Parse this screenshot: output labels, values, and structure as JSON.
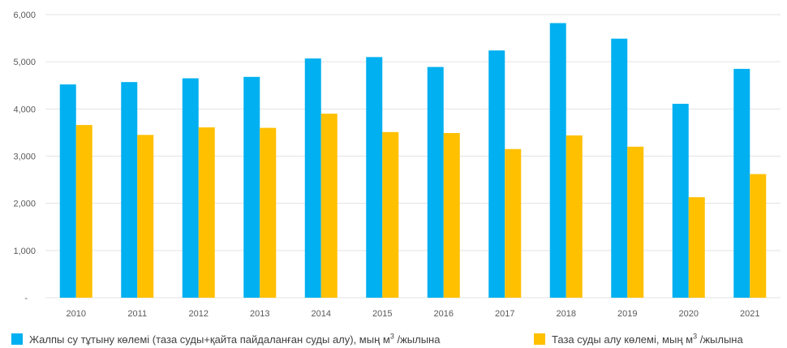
{
  "chart_data": {
    "type": "bar",
    "title": "",
    "xlabel": "",
    "ylabel": "",
    "categories": [
      "2010",
      "2011",
      "2012",
      "2013",
      "2014",
      "2015",
      "2016",
      "2017",
      "2018",
      "2019",
      "2020",
      "2021"
    ],
    "series": [
      {
        "name": "Жалпы су тұтыну көлемі (таза суды+қайта пайдаланған суды алу), мың м3 /жылына",
        "color": "#00B0F0",
        "values": [
          4520,
          4570,
          4650,
          4680,
          5070,
          5100,
          4890,
          5240,
          5820,
          5490,
          4110,
          4850
        ]
      },
      {
        "name": "Таза суды алу көлемі, мың м3 /жылына",
        "color": "#FFC000",
        "values": [
          3660,
          3450,
          3610,
          3600,
          3900,
          3510,
          3490,
          3150,
          3440,
          3200,
          2130,
          2620
        ]
      }
    ],
    "ylim": [
      0,
      6000
    ],
    "yticks": [
      "-",
      "1,000",
      "2,000",
      "3,000",
      "4,000",
      "5,000",
      "6,000"
    ],
    "grid": true,
    "legend_position": "bottom"
  },
  "legend": {
    "items": [
      {
        "text": "Жалпы су тұтыну көлемі (таза суды+қайта пайдаланған суды алу), мың м",
        "sup": "3",
        "suffix": " /жылына",
        "color": "#00B0F0"
      },
      {
        "text": "Таза суды алу көлемі, мың м",
        "sup": "3",
        "suffix": " /жылына",
        "color": "#FFC000"
      }
    ]
  }
}
